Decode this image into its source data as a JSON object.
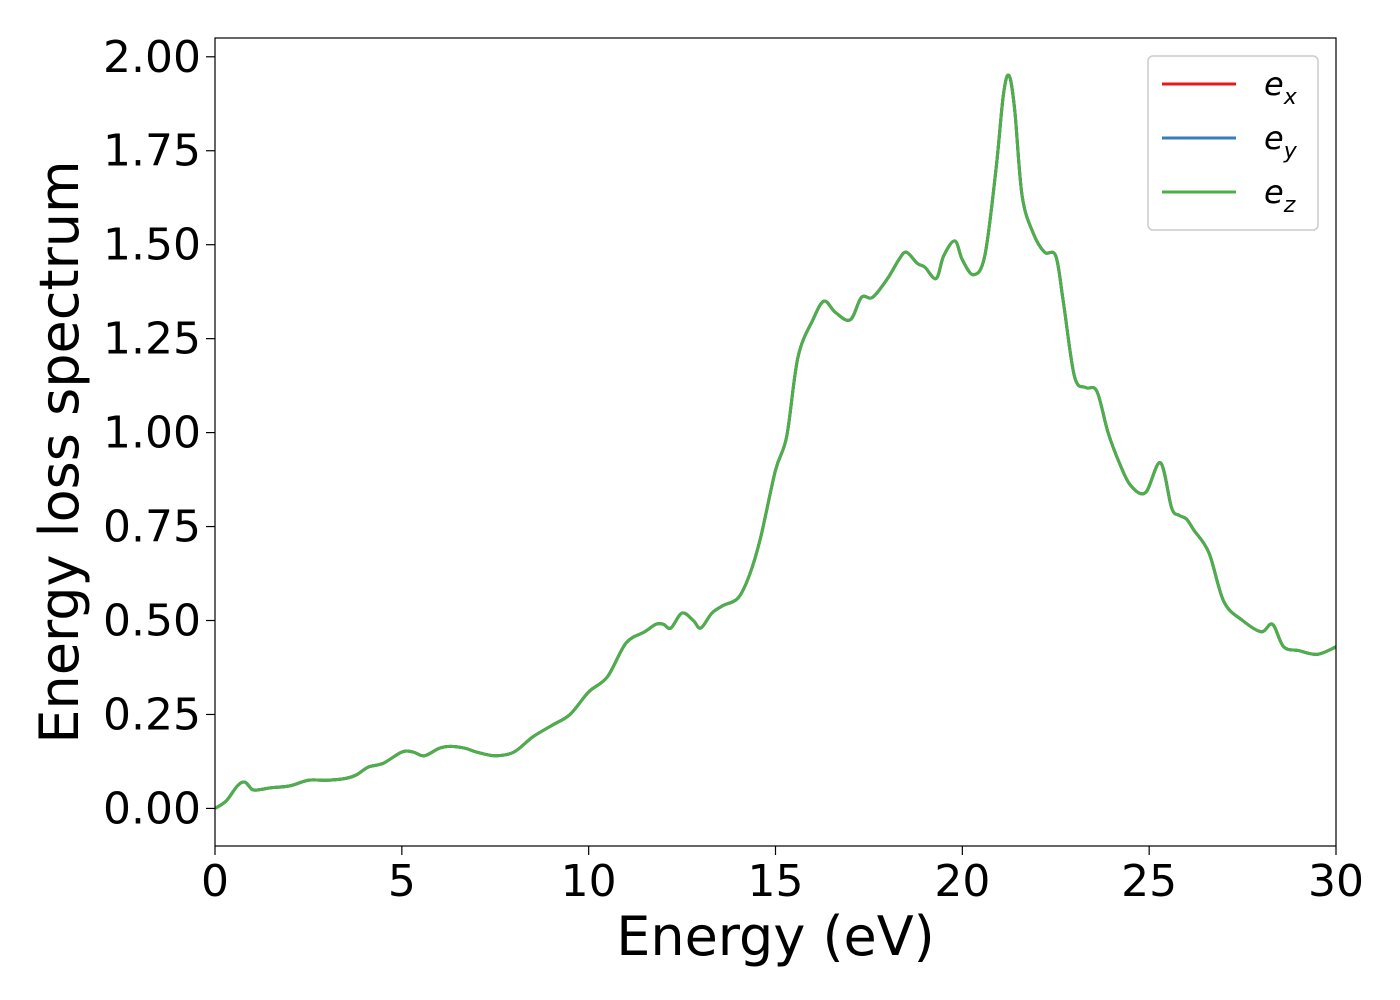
{
  "chart_data": {
    "type": "line",
    "xlabel": "Energy (eV)",
    "ylabel": "Energy loss spectrum",
    "xlim": [
      0,
      30
    ],
    "ylim": [
      -0.1,
      2.05
    ],
    "xticks": [
      "0",
      "5",
      "10",
      "15",
      "20",
      "25",
      "30"
    ],
    "yticks": [
      "0.00",
      "0.25",
      "0.50",
      "0.75",
      "1.00",
      "1.25",
      "1.50",
      "1.75",
      "2.00"
    ],
    "grid": false,
    "legend_position": "top-right",
    "series": [
      {
        "name": "e_x",
        "legend_base": "e",
        "legend_sub": "x",
        "color": "#e41a1c"
      },
      {
        "name": "e_y",
        "legend_base": "e",
        "legend_sub": "y",
        "color": "#377eb8"
      },
      {
        "name": "e_z",
        "legend_base": "e",
        "legend_sub": "z",
        "color": "#4daf4a"
      }
    ],
    "x": [
      0,
      0.3,
      0.6,
      0.8,
      1.0,
      1.2,
      1.5,
      2.0,
      2.5,
      3.0,
      3.5,
      3.8,
      4.1,
      4.5,
      5.0,
      5.3,
      5.6,
      6.0,
      6.3,
      6.7,
      7.0,
      7.5,
      8.0,
      8.5,
      9.0,
      9.5,
      10.0,
      10.5,
      11.0,
      11.5,
      11.8,
      12.0,
      12.2,
      12.5,
      12.8,
      13.0,
      13.3,
      13.6,
      14.0,
      14.3,
      14.6,
      15.0,
      15.3,
      15.6,
      16.0,
      16.3,
      16.6,
      17.0,
      17.3,
      17.6,
      18.0,
      18.3,
      18.5,
      18.8,
      19.0,
      19.3,
      19.5,
      19.8,
      20.0,
      20.3,
      20.6,
      20.9,
      21.1,
      21.25,
      21.4,
      21.6,
      21.9,
      22.2,
      22.5,
      22.7,
      23.0,
      23.3,
      23.6,
      23.9,
      24.2,
      24.5,
      24.9,
      25.3,
      25.6,
      25.8,
      26.0,
      26.2,
      26.6,
      27.0,
      27.5,
      28.0,
      28.3,
      28.6,
      29.0,
      29.5,
      30.0
    ],
    "y": [
      0.0,
      0.02,
      0.06,
      0.07,
      0.05,
      0.05,
      0.055,
      0.06,
      0.075,
      0.075,
      0.08,
      0.09,
      0.11,
      0.12,
      0.15,
      0.15,
      0.14,
      0.16,
      0.165,
      0.16,
      0.15,
      0.14,
      0.15,
      0.19,
      0.22,
      0.25,
      0.31,
      0.35,
      0.44,
      0.47,
      0.49,
      0.49,
      0.48,
      0.52,
      0.5,
      0.48,
      0.52,
      0.54,
      0.56,
      0.62,
      0.72,
      0.9,
      0.99,
      1.2,
      1.3,
      1.35,
      1.32,
      1.3,
      1.36,
      1.36,
      1.41,
      1.46,
      1.48,
      1.45,
      1.44,
      1.41,
      1.47,
      1.51,
      1.46,
      1.42,
      1.47,
      1.7,
      1.9,
      1.95,
      1.86,
      1.63,
      1.53,
      1.48,
      1.47,
      1.35,
      1.15,
      1.12,
      1.11,
      1.0,
      0.92,
      0.86,
      0.84,
      0.92,
      0.8,
      0.78,
      0.77,
      0.74,
      0.68,
      0.55,
      0.5,
      0.47,
      0.49,
      0.43,
      0.42,
      0.41,
      0.43
    ]
  }
}
